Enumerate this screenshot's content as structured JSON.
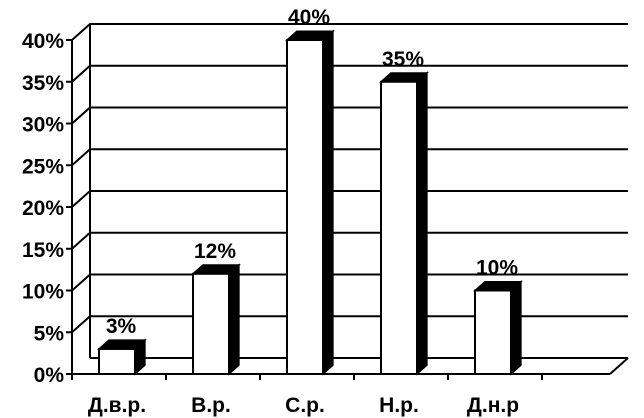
{
  "chart_data": {
    "type": "bar",
    "categories": [
      "Д.в.р.",
      "В.р.",
      "С.р.",
      "Н.р.",
      "Д.н.р"
    ],
    "values": [
      3,
      12,
      40,
      35,
      10
    ],
    "value_labels": [
      "3%",
      "12%",
      "40%",
      "35%",
      "10%"
    ],
    "y_ticks": [
      "0%",
      "5%",
      "10%",
      "15%",
      "20%",
      "25%",
      "30%",
      "35%",
      "40%"
    ],
    "ylim": [
      0,
      40
    ],
    "grid": true,
    "style": "3d-bar",
    "colors": {
      "bar_face": "#ffffff",
      "bar_side": "#000000",
      "grid": "#000000"
    }
  }
}
